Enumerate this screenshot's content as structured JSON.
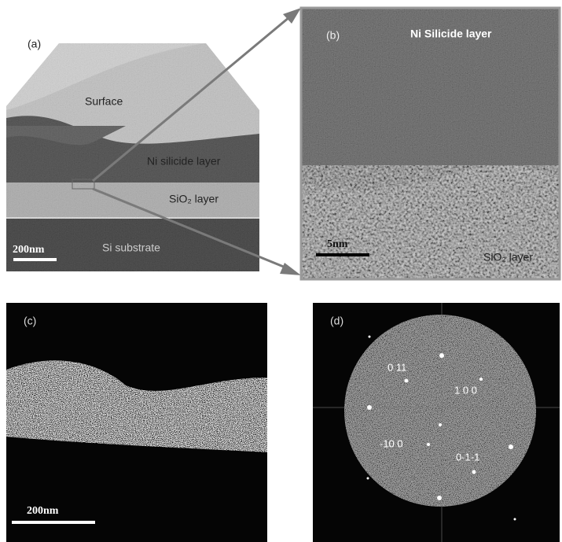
{
  "panels": [
    {
      "label": "(a)",
      "annotations": [
        "Surface",
        "Ni silicide layer",
        "SiO₂ layer",
        "Si substrate"
      ],
      "scale_bar": "200nm"
    },
    {
      "label": "(b)",
      "annotations": [
        "Ni Silicide layer",
        "SiO₂ layer"
      ],
      "scale_bar": "5nm"
    },
    {
      "label": "(c)",
      "scale_bar": "200nm"
    },
    {
      "label": "(d)",
      "annotations": [
        "0 11",
        "1 0 0",
        "-10 0",
        "0-1-1"
      ]
    }
  ]
}
